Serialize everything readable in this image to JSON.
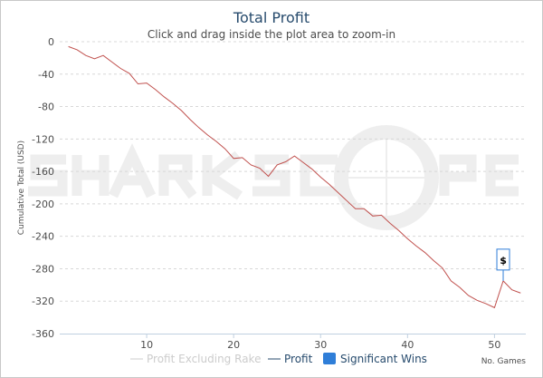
{
  "chart_data": {
    "type": "line",
    "title": "Total Profit",
    "subtitle": "Click and drag inside the plot area to zoom-in",
    "xlabel": "No. Games",
    "ylabel": "Cumulative Total (USD)",
    "xlim": [
      0,
      53.6
    ],
    "ylim": [
      -360,
      0
    ],
    "xticks": [
      10,
      20,
      30,
      40,
      50
    ],
    "yticks": [
      0,
      -40,
      -80,
      -120,
      -160,
      -200,
      -240,
      -280,
      -320,
      -360
    ],
    "grid": true,
    "legend_position": "bottom",
    "legend": [
      "Profit Excluding Rake",
      "Profit",
      "Significant Wins"
    ],
    "watermark": "SHARKSCOPE",
    "series": [
      {
        "name": "Profit",
        "color": "#c0504d",
        "x": [
          1,
          2,
          3,
          4,
          5,
          6,
          7,
          8,
          9,
          10,
          11,
          12,
          13,
          14,
          15,
          16,
          17,
          18,
          19,
          20,
          21,
          22,
          23,
          24,
          25,
          26,
          27,
          28,
          29,
          30,
          31,
          32,
          33,
          34,
          35,
          36,
          37,
          38,
          39,
          40,
          41,
          42,
          43,
          44,
          45,
          46,
          47,
          48,
          49,
          50,
          51,
          52,
          53
        ],
        "y": [
          -6,
          -10,
          -17,
          -21,
          -17,
          -25,
          -33,
          -39,
          -52,
          -51,
          -59,
          -68,
          -76,
          -85,
          -96,
          -106,
          -115,
          -123,
          -132,
          -144,
          -143,
          -152,
          -156,
          -166,
          -152,
          -148,
          -141,
          -149,
          -157,
          -167,
          -176,
          -186,
          -196,
          -206,
          -206,
          -215,
          -214,
          -224,
          -233,
          -243,
          -252,
          -260,
          -270,
          -279,
          -295,
          -303,
          -313,
          -319,
          -323,
          -328,
          -295,
          -306,
          -310
        ]
      }
    ],
    "significant_wins": [
      {
        "x": 51,
        "label": "$"
      }
    ],
    "colors": {
      "profit": "#c0504d",
      "excl_rake": "#cccccc",
      "wins": "#2f7ed8",
      "title": "#274b6d"
    }
  }
}
